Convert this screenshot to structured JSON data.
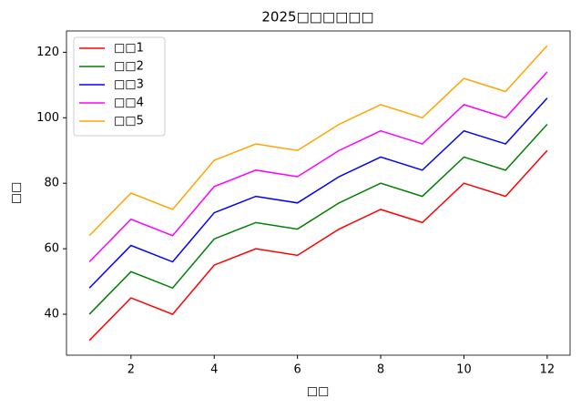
{
  "chart_data": {
    "type": "line",
    "title": "2025□□□□□□",
    "x_label": "□□",
    "y_label": "□□",
    "x": [
      1,
      2,
      3,
      4,
      5,
      6,
      7,
      8,
      9,
      10,
      11,
      12
    ],
    "series": [
      {
        "name": "□□1",
        "color": "#ff0000",
        "values": [
          32,
          45,
          40,
          55,
          60,
          58,
          66,
          72,
          68,
          80,
          76,
          90
        ]
      },
      {
        "name": "□□2",
        "color": "#008000",
        "values": [
          40,
          53,
          48,
          63,
          68,
          66,
          74,
          80,
          76,
          88,
          84,
          98
        ]
      },
      {
        "name": "□□3",
        "color": "#0000ff",
        "values": [
          48,
          61,
          56,
          71,
          76,
          74,
          82,
          88,
          84,
          96,
          92,
          106
        ]
      },
      {
        "name": "□□4",
        "color": "#ff00ff",
        "values": [
          56,
          69,
          64,
          79,
          84,
          82,
          90,
          96,
          92,
          104,
          100,
          114
        ]
      },
      {
        "name": "□□5",
        "color": "#ffa500",
        "values": [
          64,
          77,
          72,
          87,
          92,
          90,
          98,
          104,
          100,
          112,
          108,
          122
        ]
      }
    ],
    "xlim": [
      0.45,
      12.55
    ],
    "xticks": [
      2,
      4,
      6,
      8,
      10,
      12
    ],
    "ylim": [
      27.5,
      126.5
    ],
    "yticks": [
      40,
      60,
      80,
      100,
      120
    ],
    "legend": "upper-left",
    "grid": false
  }
}
